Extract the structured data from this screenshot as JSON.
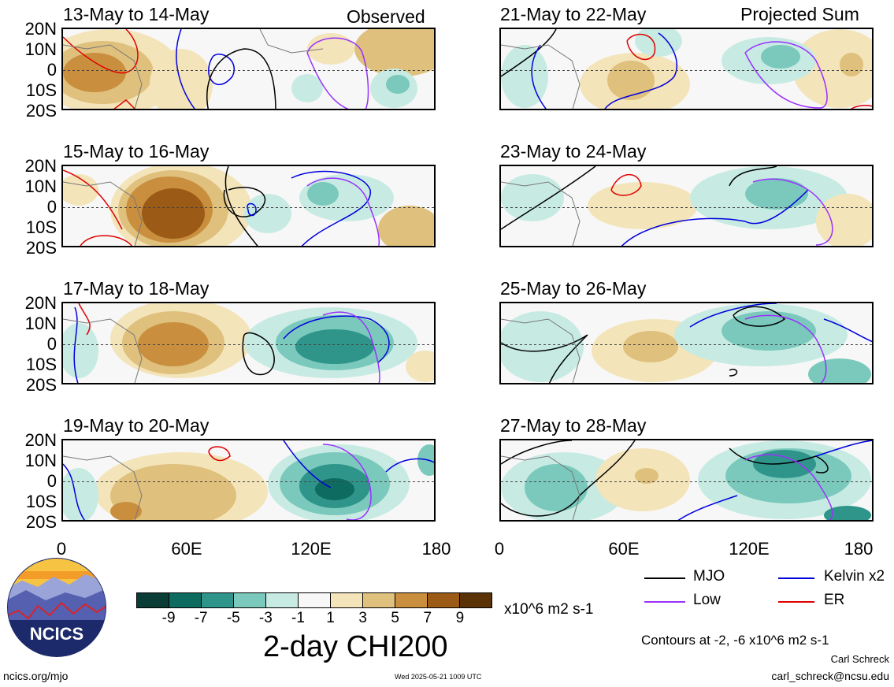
{
  "panels_left": [
    {
      "date_range": "13-May to 14-May",
      "tag": "Observed"
    },
    {
      "date_range": "15-May to 16-May",
      "tag": ""
    },
    {
      "date_range": "17-May to 18-May",
      "tag": ""
    },
    {
      "date_range": "19-May to 20-May",
      "tag": ""
    }
  ],
  "panels_right": [
    {
      "date_range": "21-May to 22-May",
      "tag": "Projected Sum"
    },
    {
      "date_range": "23-May to 24-May",
      "tag": ""
    },
    {
      "date_range": "25-May to 26-May",
      "tag": ""
    },
    {
      "date_range": "27-May to 28-May",
      "tag": ""
    }
  ],
  "lat_ticks": [
    "20N",
    "10N",
    "0",
    "10S",
    "20S"
  ],
  "lon_ticks": [
    "0",
    "60E",
    "120E",
    "180"
  ],
  "colorbar": {
    "colors": [
      "#0b3d37",
      "#0d6b60",
      "#2f958a",
      "#7ac9bc",
      "#c7ebe3",
      "#f7f7f7",
      "#f3e4b9",
      "#dfc07c",
      "#c98f3f",
      "#9b5a16",
      "#5a3206"
    ],
    "tick_labels": [
      "-9",
      "-7",
      "-5",
      "-3",
      "-1",
      "1",
      "3",
      "5",
      "7",
      "9"
    ],
    "units": "x10^6 m2 s-1",
    "title": "2-day CHI200"
  },
  "line_legend": [
    {
      "label": "MJO",
      "color": "#000000"
    },
    {
      "label": "Kelvin x2",
      "color": "#0000dd"
    },
    {
      "label": "Low",
      "color": "#9b30ff"
    },
    {
      "label": "ER",
      "color": "#e00000"
    }
  ],
  "contour_note": "Contours at -2, -6 x10^6 m2 s-1",
  "author": "Carl Schreck",
  "email": "carl_schreck@ncsu.edu",
  "site": "ncics.org/mjo",
  "timestamp": "Wed 2025-05-21 1009 UTC",
  "logo_text": "NCICS"
}
